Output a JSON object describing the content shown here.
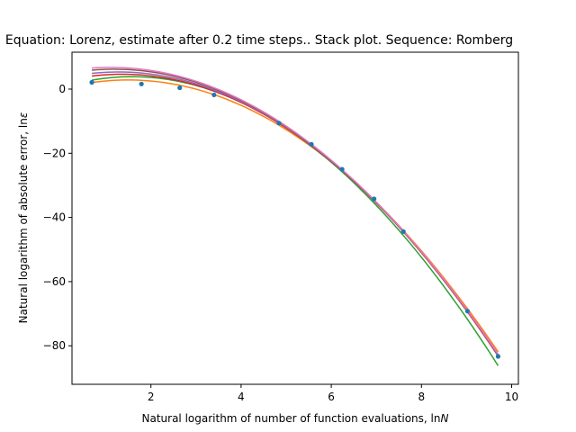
{
  "chart_data": {
    "type": "line",
    "title": "Equation: Lorenz, estimate after 0.2 time steps.. Stack plot. Sequence: Romberg",
    "xlabel": "Natural logarithm of number of function evaluations, ln",
    "xlabel_symbol": "N",
    "ylabel": "Natural logarithm of absolute error, ln",
    "ylabel_symbol": "ε",
    "xlim": [
      0.25,
      10.15
    ],
    "ylim": [
      -92,
      11.5
    ],
    "xticks": [
      2,
      4,
      6,
      8,
      10
    ],
    "yticks": [
      0,
      -20,
      -40,
      -60,
      -80
    ],
    "grid": false,
    "legend": "none",
    "scatter": {
      "color": "#1f77b4",
      "points": [
        {
          "x": 0.69,
          "y": 2.1
        },
        {
          "x": 1.79,
          "y": 1.6
        },
        {
          "x": 2.64,
          "y": 0.4
        },
        {
          "x": 3.4,
          "y": -1.8
        },
        {
          "x": 4.84,
          "y": -10.6
        },
        {
          "x": 5.56,
          "y": -17.2
        },
        {
          "x": 6.24,
          "y": -25.0
        },
        {
          "x": 6.95,
          "y": -34.2
        },
        {
          "x": 7.6,
          "y": -44.4
        },
        {
          "x": 9.02,
          "y": -69.2
        },
        {
          "x": 9.7,
          "y": -83.3
        }
      ]
    },
    "series": [
      {
        "color": "#ff7f0e",
        "x": [
          0.69,
          2.2,
          3.6,
          4.84,
          6.24,
          7.6,
          8.4,
          9.02,
          9.7
        ],
        "y": [
          3.0,
          1.2,
          -3.6,
          -11.2,
          -25.0,
          -43.5,
          -56.5,
          -68.2,
          -83.0
        ]
      },
      {
        "color": "#2ca02c",
        "x": [
          0.69,
          2.2,
          3.6,
          4.84,
          6.24,
          7.6,
          8.4,
          9.02,
          9.7
        ],
        "y": [
          3.9,
          2.1,
          -2.6,
          -10.6,
          -25.0,
          -45.0,
          -59.5,
          -71.0,
          -87.5
        ]
      },
      {
        "color": "#d62728",
        "x": [
          0.69,
          2.2,
          3.6,
          4.84,
          6.24,
          7.6,
          8.4,
          9.02,
          9.7
        ],
        "y": [
          4.8,
          2.8,
          -2.2,
          -10.4,
          -25.0,
          -44.5,
          -57.5,
          -69.0,
          -84.0
        ]
      },
      {
        "color": "#9467bd",
        "x": [
          0.69,
          2.2,
          3.6,
          4.84,
          6.24,
          7.6,
          8.4,
          9.02,
          9.7
        ],
        "y": [
          5.6,
          3.4,
          -1.8,
          -10.3,
          -25.0,
          -44.3,
          -57.3,
          -68.8,
          -83.8
        ]
      },
      {
        "color": "#8c564b",
        "x": [
          0.69,
          2.2,
          3.6,
          4.84,
          6.24,
          7.6,
          8.4,
          9.02,
          9.7
        ],
        "y": [
          6.5,
          4.1,
          -1.2,
          -10.1,
          -25.0,
          -44.2,
          -57.2,
          -68.7,
          -83.5
        ]
      },
      {
        "color": "#e377c2",
        "x": [
          0.69,
          2.2,
          3.6,
          4.84,
          6.24,
          7.6,
          8.4,
          9.02,
          9.7
        ],
        "y": [
          7.1,
          4.6,
          -0.9,
          -10.0,
          -25.0,
          -44.1,
          -57.0,
          -68.6,
          -83.4
        ]
      }
    ]
  }
}
